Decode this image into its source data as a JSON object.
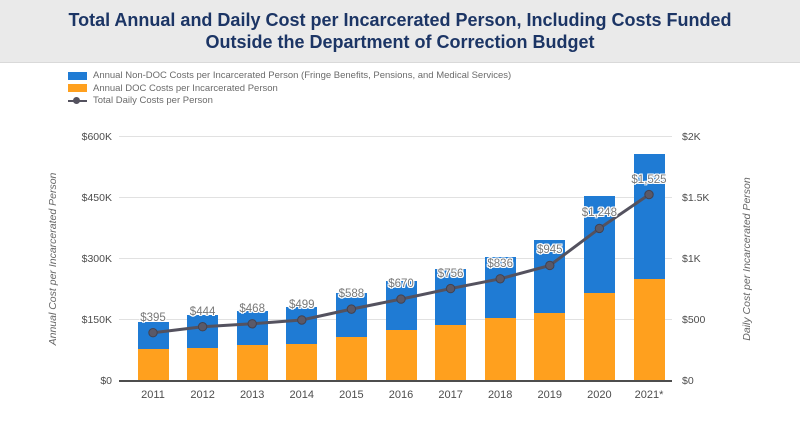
{
  "title": "Total Annual and Daily Cost per Incarcerated Person, Including Costs Funded Outside the Department of Correction Budget",
  "legend": {
    "items": [
      {
        "label": "Annual Non-DOC Costs per Incarcerated Person (Fringe Benefits, Pensions, and Medical Services)",
        "color": "#1f7bd4",
        "marker": "swatch"
      },
      {
        "label": "Annual DOC Costs per Incarcerated Person",
        "color": "#ffa01e",
        "marker": "swatch"
      },
      {
        "label": "Total Daily Costs per Person",
        "color": "#54525f",
        "marker": "line-dot"
      }
    ]
  },
  "colors": {
    "non_doc_bar": "#1f7bd4",
    "doc_bar": "#ffa01e",
    "daily_line": "#54525f",
    "title_text": "#1c3565",
    "title_band_bg": "#eaeaea",
    "gridline": "#e1e1e1",
    "axis_text": "#4d4d4d",
    "point_label": "#787878"
  },
  "chart_data": {
    "type": "bar",
    "subtype": "stacked-bar-with-line",
    "categories": [
      "2011",
      "2012",
      "2013",
      "2014",
      "2015",
      "2016",
      "2017",
      "2018",
      "2019",
      "2020",
      "2021*"
    ],
    "series": [
      {
        "name": "Annual DOC Costs per Incarcerated Person",
        "type": "bar",
        "stack_order": 1,
        "axis": "left",
        "color": "#ffa01e",
        "values_usd": [
          78000,
          80000,
          88000,
          92000,
          108000,
          126000,
          138000,
          154000,
          166000,
          215000,
          251000
        ]
      },
      {
        "name": "Annual Non-DOC Costs per Incarcerated Person (Fringe Benefits, Pensions, and Medical Services)",
        "type": "bar",
        "stack_order": 2,
        "axis": "left",
        "color": "#1f7bd4",
        "values_usd": [
          66000,
          82000,
          83000,
          90000,
          107000,
          119000,
          138000,
          151000,
          179000,
          240000,
          306000
        ]
      },
      {
        "name": "Total Daily Costs per Person",
        "type": "line",
        "axis": "right",
        "color": "#54525f",
        "values_usd": [
          395,
          444,
          468,
          499,
          588,
          670,
          756,
          836,
          945,
          1248,
          1525
        ],
        "labels": [
          "$395",
          "$444",
          "$468",
          "$499",
          "$588",
          "$670",
          "$756",
          "$836",
          "$945",
          "$1,248",
          "$1,525"
        ]
      }
    ],
    "left_axis": {
      "title": "Annual Cost per Incarcerated Person",
      "ticks": [
        "$0",
        "$150K",
        "$300K",
        "$450K",
        "$600K"
      ],
      "tick_values": [
        0,
        150000,
        300000,
        450000,
        600000
      ],
      "min": 0,
      "max": 600000
    },
    "right_axis": {
      "title": "Daily Cost per Incarcerated Person",
      "ticks": [
        "$0",
        "$500",
        "$1K",
        "$1.5K",
        "$2K"
      ],
      "tick_values": [
        0,
        500,
        1000,
        1500,
        2000
      ],
      "min": 0,
      "max": 2000
    },
    "grid": true,
    "legend_position": "top-left"
  }
}
